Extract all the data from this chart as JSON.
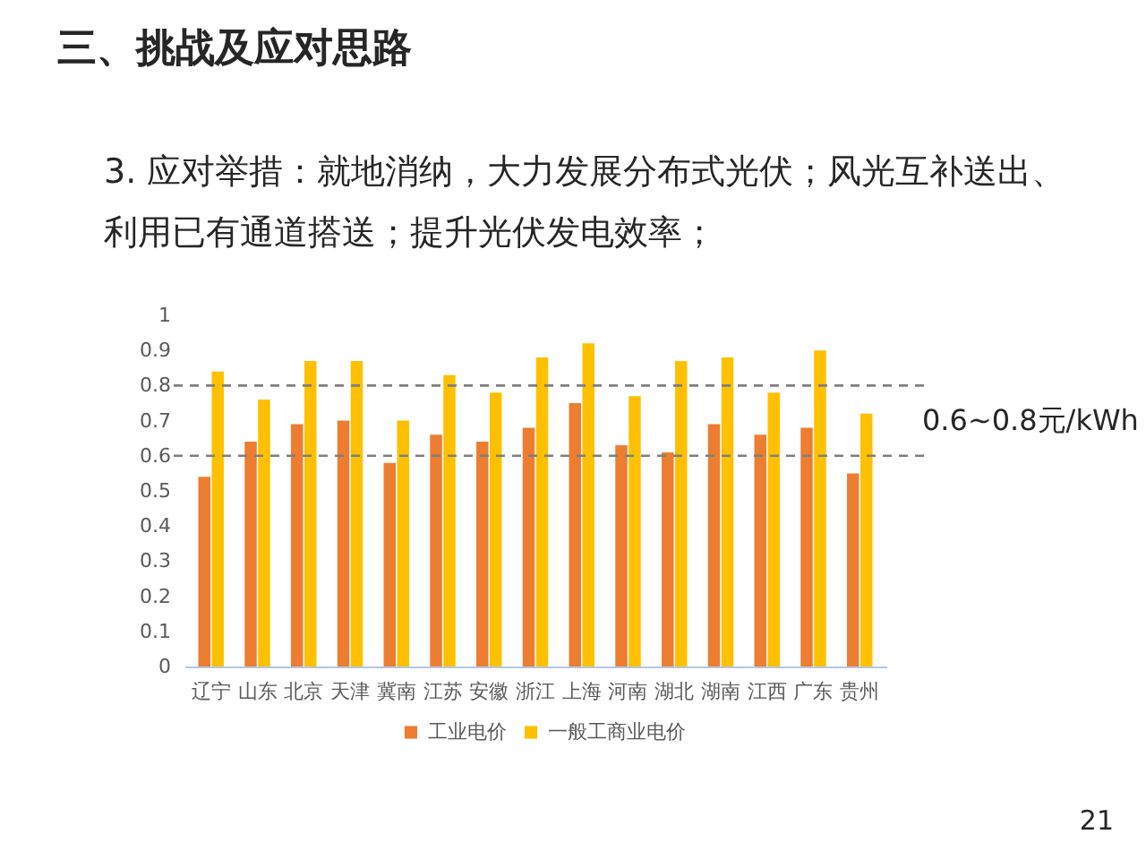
{
  "chart_data": {
    "type": "bar",
    "title": "三、挑战及应对思路",
    "subtitle": "3. 应对举措：就地消纳，大力发展分布式光伏；风光互补送出、利用已有通道搭送；提升光伏发电效率；",
    "categories": [
      "辽宁",
      "山东",
      "北京",
      "天津",
      "冀南",
      "江苏",
      "安徽",
      "浙江",
      "上海",
      "河南",
      "湖北",
      "湖南",
      "江西",
      "广东",
      "贵州"
    ],
    "series": [
      {
        "name": "工业电价",
        "color": "#ed7d31",
        "values": [
          0.54,
          0.64,
          0.69,
          0.7,
          0.58,
          0.66,
          0.64,
          0.68,
          0.75,
          0.63,
          0.61,
          0.69,
          0.66,
          0.68,
          0.55
        ]
      },
      {
        "name": "一般工商业电价",
        "color": "#ffc000",
        "values": [
          0.84,
          0.76,
          0.87,
          0.87,
          0.7,
          0.83,
          0.78,
          0.88,
          0.92,
          0.77,
          0.87,
          0.88,
          0.78,
          0.9,
          0.72
        ]
      }
    ],
    "ylim": [
      0,
      1
    ],
    "yticks": [
      0,
      0.1,
      0.2,
      0.3,
      0.4,
      0.5,
      0.6,
      0.7,
      0.8,
      0.9,
      1
    ],
    "ref_lines": [
      {
        "axis": "y",
        "value": 0.6,
        "color": "#7f7f7f",
        "line_style": "dashed"
      },
      {
        "axis": "y",
        "value": 0.8,
        "color": "#7f7f7f",
        "line_style": "dashed"
      }
    ],
    "annotations": [
      "0.6~0.8元/kWh",
      "21"
    ],
    "legend": "bottom"
  }
}
